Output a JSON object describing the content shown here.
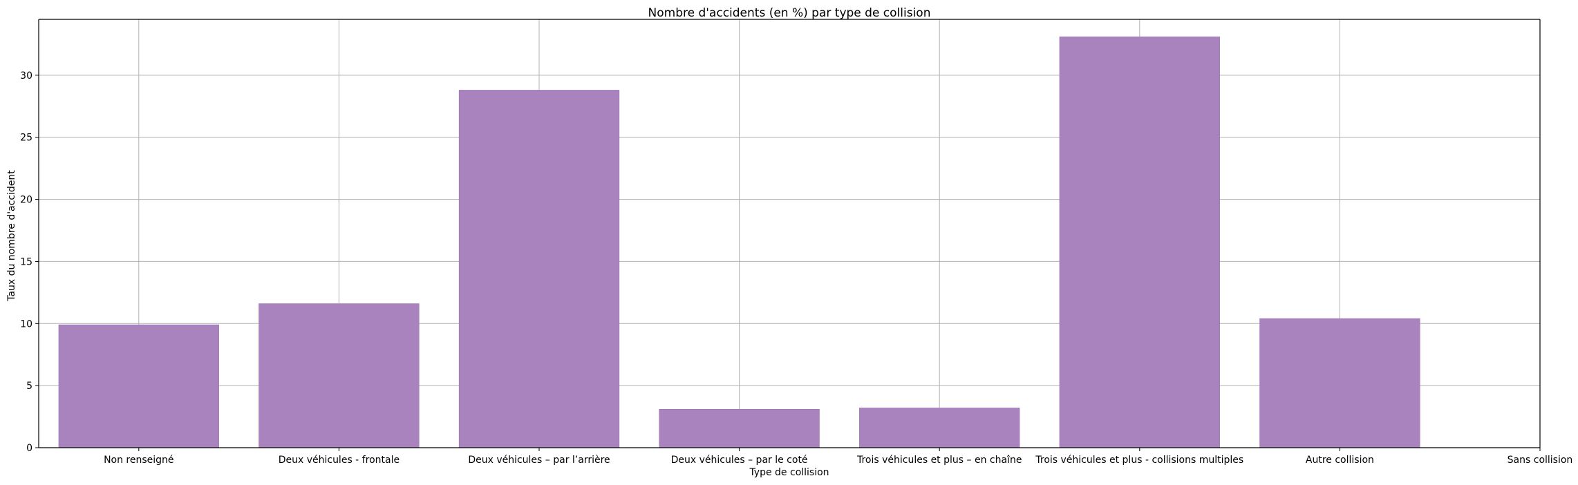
{
  "chart_data": {
    "type": "bar",
    "title": "Nombre d'accidents (en %) par type de collision",
    "xlabel": "Type de collision",
    "ylabel": "Taux du nombre d'accident",
    "categories": [
      "Non renseigné",
      "Deux véhicules - frontale",
      "Deux véhicules – par l’arrière",
      "Deux véhicules – par le coté",
      "Trois véhicules et plus – en chaîne",
      "Trois véhicules et plus - collisions multiples",
      "Autre collision",
      "Sans collision"
    ],
    "values": [
      9.9,
      11.6,
      28.8,
      3.1,
      3.2,
      33.1,
      10.4,
      0
    ],
    "ylim": [
      0,
      34.5
    ],
    "yticks": [
      0,
      5,
      10,
      15,
      20,
      25,
      30
    ],
    "grid": true,
    "bar_color": "#a983be",
    "bar_edge_color": "#9a72b2",
    "grid_color": "#b0b0b0"
  }
}
